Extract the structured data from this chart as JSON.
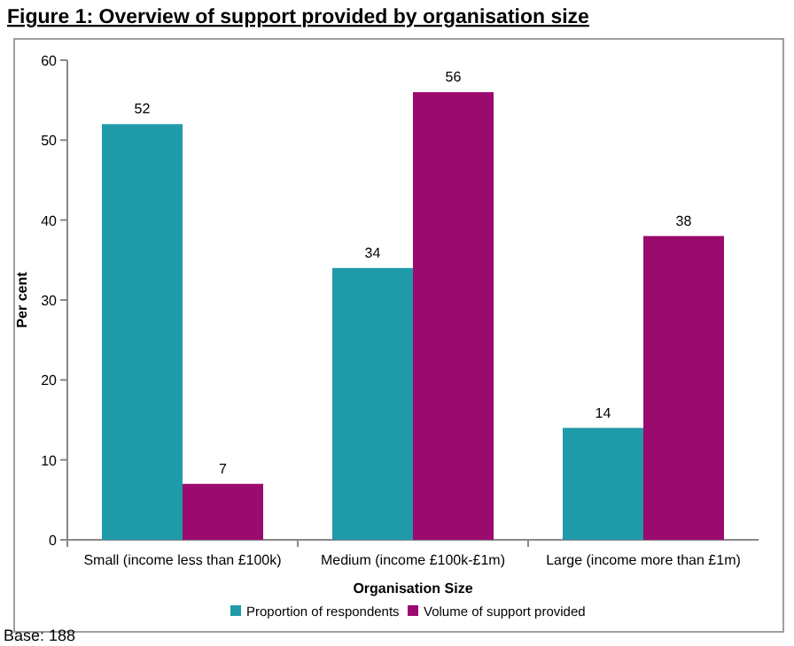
{
  "chart_data": {
    "type": "bar",
    "title": "Figure 1: Overview of support provided by organisation size",
    "categories": [
      "Small (income less than £100k)",
      "Medium (income £100k-£1m)",
      "Large (income more than £1m)"
    ],
    "series": [
      {
        "name": "Proportion of respondents",
        "color": "#1f9aa8",
        "values": [
          52,
          34,
          14
        ]
      },
      {
        "name": "Volume of support provided",
        "color": "#9b0a6e",
        "values": [
          7,
          56,
          38
        ]
      }
    ],
    "ylim": [
      0,
      60
    ],
    "yticks": [
      0,
      10,
      20,
      30,
      40,
      50,
      60
    ],
    "ylabel": "Per cent",
    "xlabel": "Organisation Size",
    "data_labels": true,
    "grid": false,
    "legend": "bottom",
    "annotations": [
      "Base: 188"
    ]
  }
}
